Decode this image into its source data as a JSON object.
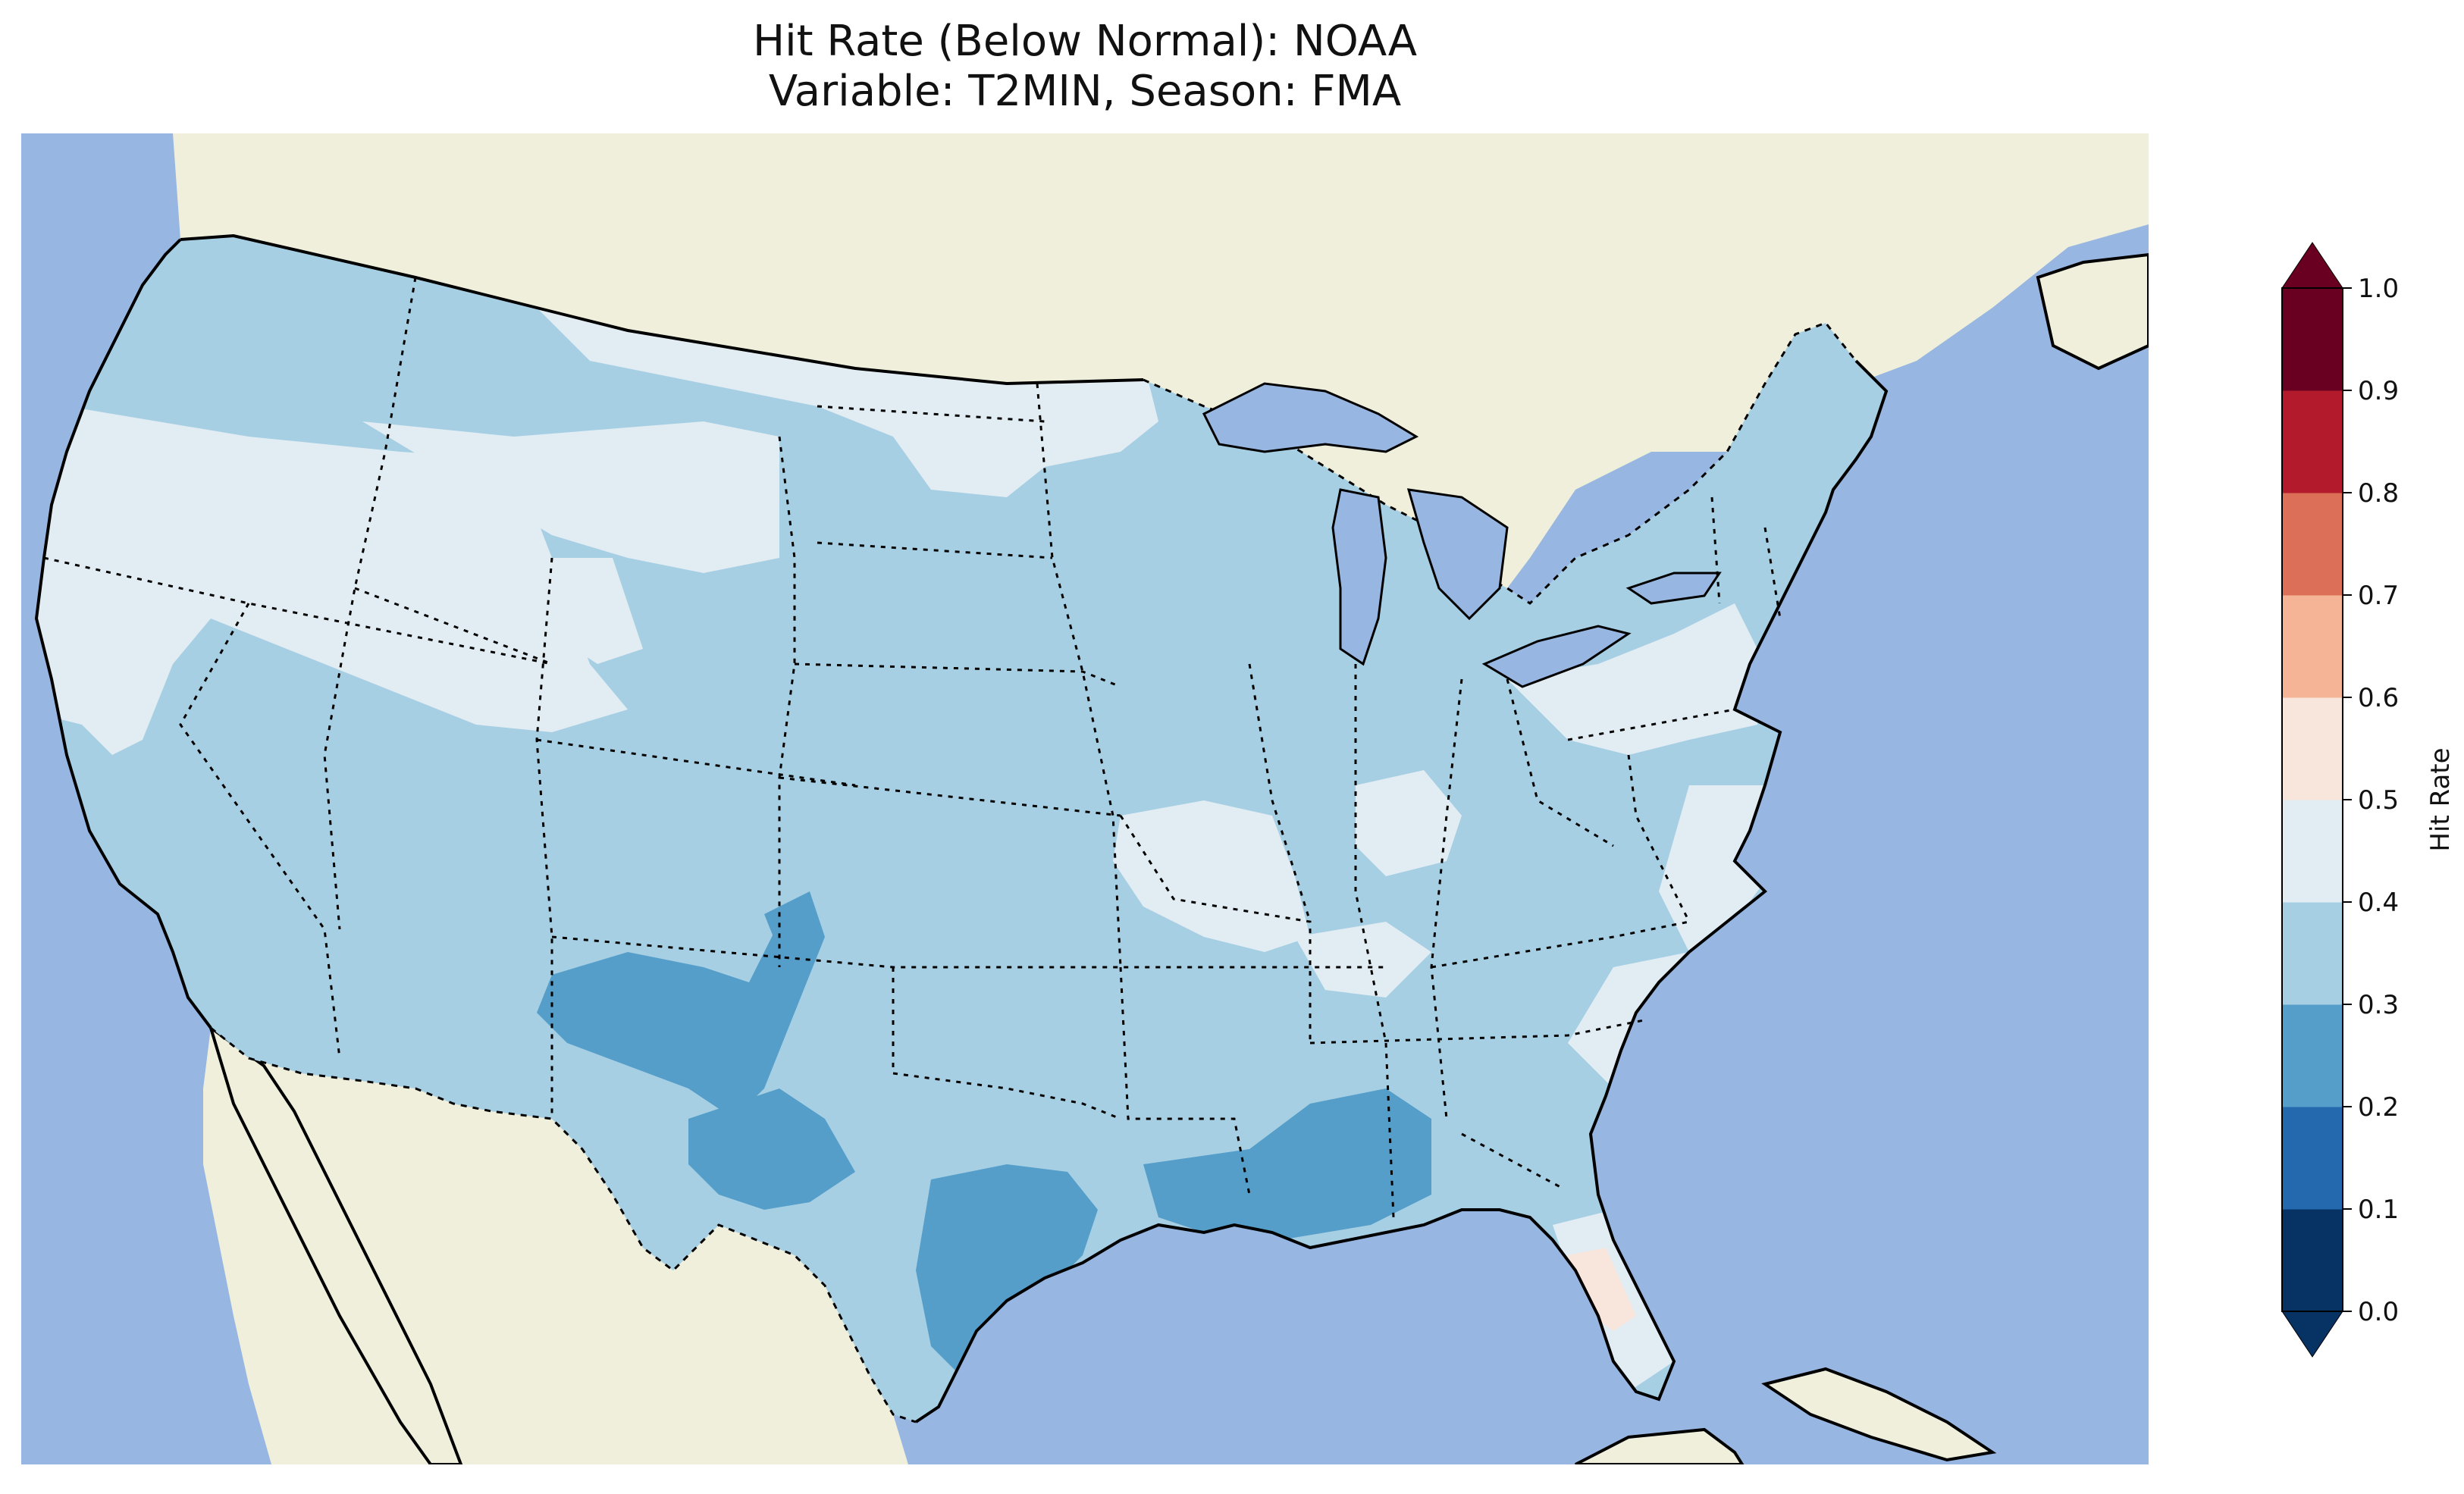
{
  "title": {
    "line1": "Hit Rate (Below Normal): NOAA",
    "line2": "Variable: T2MIN, Season: FMA"
  },
  "map": {
    "projection": "lambert-conformal",
    "region": "CONUS",
    "colors": {
      "ocean": "#97b6e1",
      "land": "#efefdb",
      "coast": "#000000",
      "border": "#000000"
    },
    "field_icon": "hit-rate-grid",
    "dominant_bins": [
      "0.2-0.3",
      "0.3-0.4",
      "0.4-0.5",
      "0.5-0.6"
    ]
  },
  "colorbar": {
    "label": "Hit Rate",
    "ticks": [
      "0.0",
      "0.1",
      "0.2",
      "0.3",
      "0.4",
      "0.5",
      "0.6",
      "0.7",
      "0.8",
      "0.9",
      "1.0"
    ],
    "extend": "both",
    "colors": [
      "#063264",
      "#2469ae",
      "#549ec9",
      "#a7cfe4",
      "#e2edf3",
      "#f8e6dc",
      "#f5b495",
      "#dc6f58",
      "#b31b2c",
      "#6a0021"
    ]
  }
}
